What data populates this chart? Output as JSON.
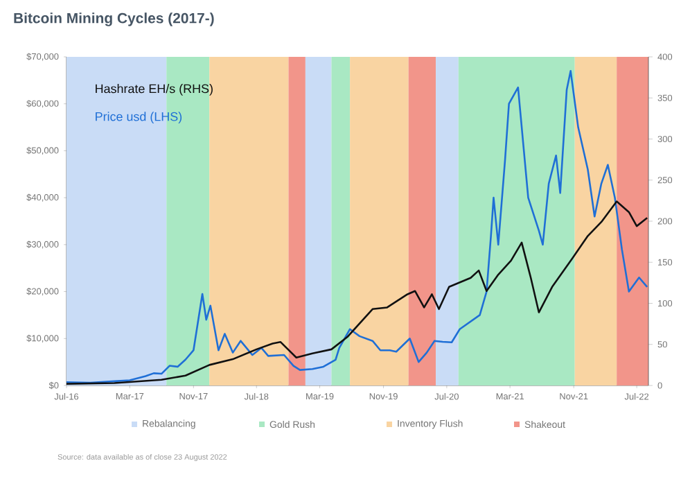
{
  "chart_data": {
    "type": "line",
    "title": "Bitcoin Mining Cycles (2017-)",
    "annotations": [
      "Source: data available as of close 23 August 2022"
    ],
    "xlim": [
      "2016-07-01",
      "2022-08-15"
    ],
    "xticks": [
      {
        "value": "2016-07",
        "label": "Jul-16"
      },
      {
        "value": "2017-03",
        "label": "Mar-17"
      },
      {
        "value": "2017-11",
        "label": "Nov-17"
      },
      {
        "value": "2018-07",
        "label": "Jul-18"
      },
      {
        "value": "2019-03",
        "label": "Mar-19"
      },
      {
        "value": "2019-11",
        "label": "Nov-19"
      },
      {
        "value": "2020-07",
        "label": "Jul-20"
      },
      {
        "value": "2021-03",
        "label": "Mar-21"
      },
      {
        "value": "2021-11",
        "label": "Nov-21"
      },
      {
        "value": "2022-07",
        "label": "Jul-22"
      }
    ],
    "ylim": [
      0,
      70000
    ],
    "yticks": [
      {
        "value": 0,
        "label": "$0"
      },
      {
        "value": 10000,
        "label": "$10,000"
      },
      {
        "value": 20000,
        "label": "$20,000"
      },
      {
        "value": 30000,
        "label": "$30,000"
      },
      {
        "value": 40000,
        "label": "$40,000"
      },
      {
        "value": 50000,
        "label": "$50,000"
      },
      {
        "value": 60000,
        "label": "$60,000"
      },
      {
        "value": 70000,
        "label": "$70,000"
      }
    ],
    "y2lim": [
      0,
      400
    ],
    "y2ticks": [
      0,
      50,
      100,
      150,
      200,
      250,
      300,
      350,
      400
    ],
    "marker": "none",
    "legend": "bottom",
    "series": [
      {
        "name": "Price usd (LHS)",
        "color": "#1f6fd6",
        "x": [
          "2016-07-01",
          "2016-10-01",
          "2017-01-01",
          "2017-03-01",
          "2017-05-01",
          "2017-06-01",
          "2017-07-01",
          "2017-08-01",
          "2017-09-01",
          "2017-10-01",
          "2017-11-01",
          "2017-12-05",
          "2017-12-20",
          "2018-01-05",
          "2018-02-05",
          "2018-03-01",
          "2018-04-01",
          "2018-05-01",
          "2018-06-15",
          "2018-07-20",
          "2018-08-15",
          "2018-10-15",
          "2018-11-20",
          "2018-12-15",
          "2019-02-01",
          "2019-03-15",
          "2019-05-01",
          "2019-05-15",
          "2019-06-25",
          "2019-08-01",
          "2019-09-20",
          "2019-10-20",
          "2019-11-25",
          "2019-12-20",
          "2020-02-10",
          "2020-03-15",
          "2020-04-15",
          "2020-05-15",
          "2020-06-15",
          "2020-07-20",
          "2020-08-20",
          "2020-11-05",
          "2020-12-01",
          "2020-12-18",
          "2020-12-28",
          "2021-01-15",
          "2021-02-10",
          "2021-02-25",
          "2021-04-01",
          "2021-05-10",
          "2021-06-20",
          "2021-07-05",
          "2021-07-28",
          "2021-08-25",
          "2021-09-10",
          "2021-10-05",
          "2021-10-20",
          "2021-11-18",
          "2021-12-25",
          "2022-01-20",
          "2022-02-15",
          "2022-03-12",
          "2022-04-08",
          "2022-05-05",
          "2022-06-01",
          "2022-07-10",
          "2022-08-10"
        ],
        "values": [
          700,
          600,
          900,
          1100,
          2000,
          2600,
          2500,
          4200,
          4000,
          5500,
          7500,
          19500,
          14000,
          17000,
          7500,
          11000,
          7000,
          9500,
          6500,
          8000,
          6300,
          6500,
          4200,
          3300,
          3500,
          4000,
          5500,
          8000,
          12000,
          10500,
          9500,
          7500,
          7500,
          7200,
          10000,
          5000,
          7000,
          9500,
          9300,
          9200,
          12000,
          15000,
          20000,
          32000,
          40000,
          30000,
          48000,
          60000,
          63500,
          40000,
          33000,
          30000,
          43000,
          49000,
          41000,
          63000,
          67000,
          55000,
          46000,
          36000,
          43000,
          47000,
          40000,
          29000,
          20000,
          23000,
          21000
        ]
      },
      {
        "name": "Hashrate EH/s (RHS)",
        "color": "#111111",
        "axis": "y2",
        "x": [
          "2016-07-01",
          "2017-01-01",
          "2017-07-01",
          "2017-10-01",
          "2018-01-01",
          "2018-04-01",
          "2018-07-01",
          "2018-09-01",
          "2018-10-01",
          "2018-12-01",
          "2019-02-01",
          "2019-04-15",
          "2019-06-15",
          "2019-09-20",
          "2019-11-15",
          "2020-02-01",
          "2020-03-01",
          "2020-04-05",
          "2020-05-05",
          "2020-06-01",
          "2020-07-10",
          "2020-10-01",
          "2020-11-01",
          "2020-12-01",
          "2021-01-15",
          "2021-03-05",
          "2021-04-15",
          "2021-05-20",
          "2021-06-20",
          "2021-08-10",
          "2021-10-25",
          "2021-12-25",
          "2022-02-15",
          "2022-04-15",
          "2022-06-01",
          "2022-07-01",
          "2022-08-10"
        ],
        "values": [
          2,
          3,
          7,
          12,
          25,
          32,
          44,
          51,
          53,
          34,
          39,
          44,
          59,
          93,
          95,
          111,
          115,
          95,
          111,
          93,
          120,
          131,
          140,
          115,
          135,
          152,
          174,
          131,
          89,
          120,
          154,
          182,
          199,
          224,
          211,
          194,
          204
        ]
      }
    ],
    "bands": [
      {
        "axis": "x",
        "from": "2016-07-01",
        "to": "2017-07-20",
        "label": "Rebalancing",
        "color": "#c9dcf6"
      },
      {
        "axis": "x",
        "from": "2017-07-20",
        "to": "2018-01-01",
        "label": "Gold Rush",
        "color": "#a9e8c3"
      },
      {
        "axis": "x",
        "from": "2018-01-01",
        "to": "2018-11-01",
        "label": "Inventory Flush",
        "color": "#f9d4a2"
      },
      {
        "axis": "x",
        "from": "2018-11-01",
        "to": "2019-01-05",
        "label": "Shakeout",
        "color": "#f2958a"
      },
      {
        "axis": "x",
        "from": "2019-01-05",
        "to": "2019-04-15",
        "color": "#c9dcf6"
      },
      {
        "axis": "x",
        "from": "2019-04-15",
        "to": "2019-06-25",
        "color": "#a9e8c3"
      },
      {
        "axis": "x",
        "from": "2019-06-25",
        "to": "2020-02-05",
        "color": "#f9d4a2"
      },
      {
        "axis": "x",
        "from": "2020-02-05",
        "to": "2020-05-20",
        "color": "#f2958a"
      },
      {
        "axis": "x",
        "from": "2020-05-20",
        "to": "2020-08-15",
        "color": "#c9dcf6"
      },
      {
        "axis": "x",
        "from": "2020-08-15",
        "to": "2021-11-05",
        "color": "#a9e8c3"
      },
      {
        "axis": "x",
        "from": "2021-11-05",
        "to": "2022-04-15",
        "color": "#f9d4a2"
      },
      {
        "axis": "x",
        "from": "2022-04-15",
        "to": "2022-08-15",
        "color": "#f2958a"
      }
    ]
  }
}
